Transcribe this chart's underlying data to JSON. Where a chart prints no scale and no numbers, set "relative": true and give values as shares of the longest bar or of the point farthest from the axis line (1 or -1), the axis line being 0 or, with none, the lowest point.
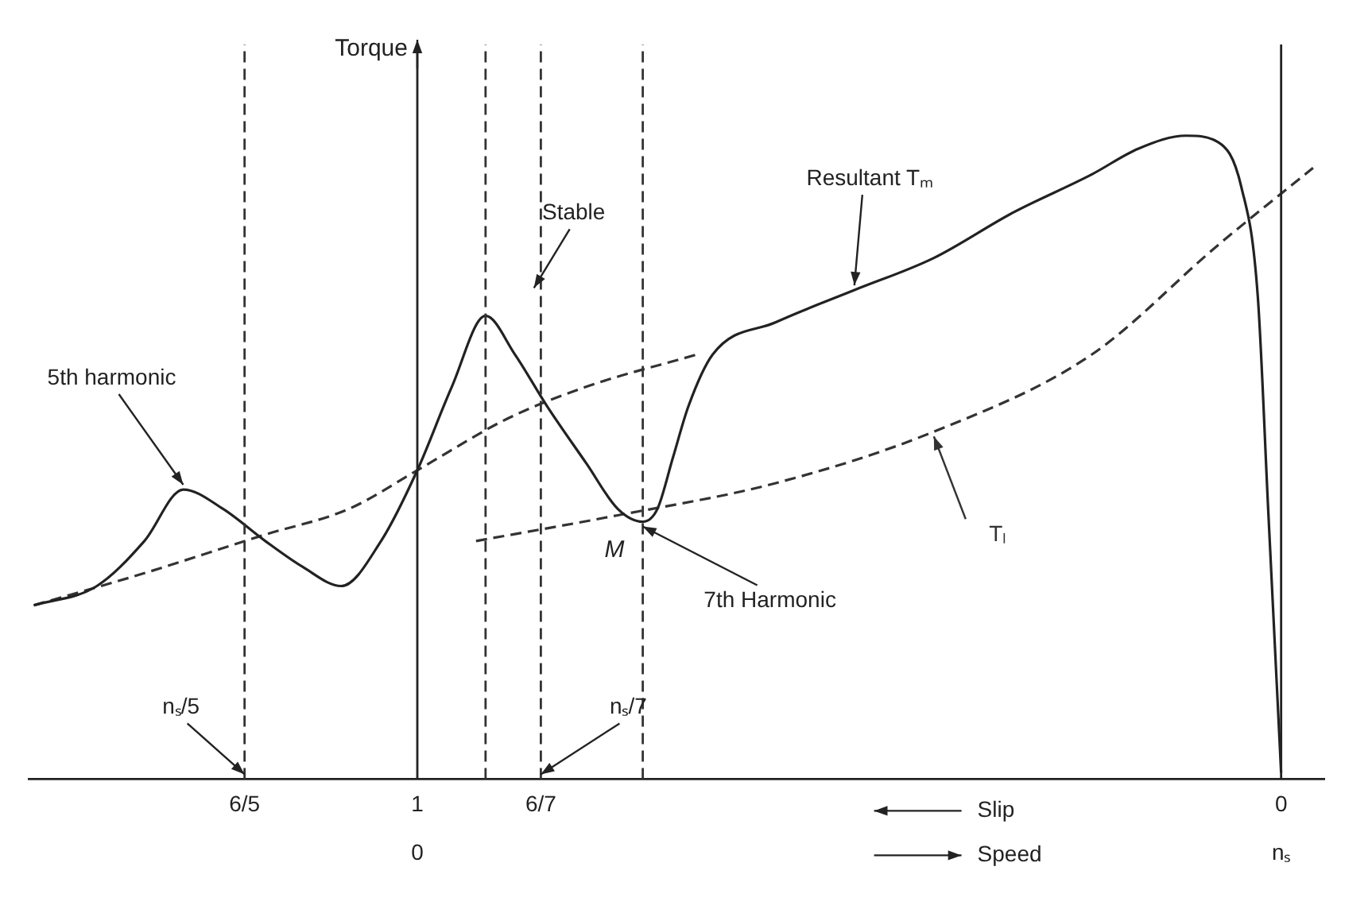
{
  "chart_data": {
    "type": "line",
    "relative": true,
    "ylabel": "Torque",
    "xlabel": "Slip",
    "x2label": "Speed",
    "xlim": [
      1.45,
      -0.05
    ],
    "xticks": [
      {
        "value": 1.2,
        "label": "6/5"
      },
      1,
      {
        "value": 0.857,
        "label": "6/7"
      },
      0
    ],
    "series": [
      {
        "name": "Resultant Tₘ",
        "color": "#222222",
        "line_style": "solid",
        "x": [
          1.444,
          1.371,
          1.316,
          1.271,
          1.225,
          1.176,
          1.133,
          1.088,
          1.042,
          1.0,
          0.96,
          0.921,
          0.887,
          0.85,
          0.804,
          0.768,
          0.739,
          0.722,
          0.704,
          0.686,
          0.658,
          0.585,
          0.494,
          0.402,
          0.311,
          0.219,
          0.165,
          0.11,
          0.073,
          0.046,
          0.027,
          0.015,
          0.0
        ],
        "values": [
          0.27,
          0.3,
          0.37,
          0.45,
          0.42,
          0.37,
          0.33,
          0.3,
          0.37,
          0.48,
          0.61,
          0.72,
          0.66,
          0.58,
          0.49,
          0.42,
          0.4,
          0.42,
          0.5,
          0.58,
          0.66,
          0.71,
          0.76,
          0.81,
          0.88,
          0.94,
          0.98,
          1.0,
          0.99,
          0.92,
          0.75,
          0.42,
          0.01
        ]
      },
      {
        "color": "#333333",
        "line_style": "dashed",
        "x": [
          1.444,
          1.316,
          1.176,
          1.079,
          1.0,
          0.896,
          0.804,
          0.676
        ],
        "values": [
          0.27,
          0.32,
          0.38,
          0.42,
          0.48,
          0.56,
          0.61,
          0.66
        ]
      },
      {
        "name": "Tₗ",
        "color": "#333333",
        "line_style": "dashed",
        "x": [
          0.932,
          0.768,
          0.585,
          0.402,
          0.219,
          0.073,
          -0.037
        ],
        "values": [
          0.37,
          0.41,
          0.46,
          0.54,
          0.66,
          0.83,
          0.95
        ]
      }
    ],
    "ref_lines": [
      {
        "axis": "x",
        "value": 1,
        "line_style": "solid",
        "color": "#222222"
      },
      {
        "axis": "x",
        "value": 0,
        "line_style": "solid",
        "color": "#222222"
      },
      {
        "axis": "x",
        "value": 1.2,
        "line_style": "dashed",
        "color": "#333333"
      },
      {
        "axis": "x",
        "value": 0.857,
        "line_style": "dashed",
        "color": "#333333"
      },
      {
        "axis": "x",
        "value": 0.921,
        "line_style": "dashed",
        "color": "#333333"
      },
      {
        "axis": "x",
        "value": 0.739,
        "line_style": "dashed",
        "color": "#333333"
      }
    ],
    "annotations": [
      {
        "text": "5th harmonic",
        "x": 1.271,
        "y": 0.45
      },
      "Stable",
      {
        "text": "M",
        "x": 0.768,
        "y": 0.41
      },
      {
        "text": "7th Harmonic",
        "x": 0.739,
        "y": 0.4
      },
      {
        "text": "nₛ/5",
        "x": 1.2,
        "y": 0
      },
      {
        "text": "nₛ/7",
        "x": 0.857,
        "y": 0
      },
      {
        "text": "0",
        "x": 1,
        "y": 0
      },
      {
        "text": "nₛ",
        "x": 0,
        "y": 0
      }
    ],
    "legend": false,
    "grid": false,
    "marker": "none"
  }
}
